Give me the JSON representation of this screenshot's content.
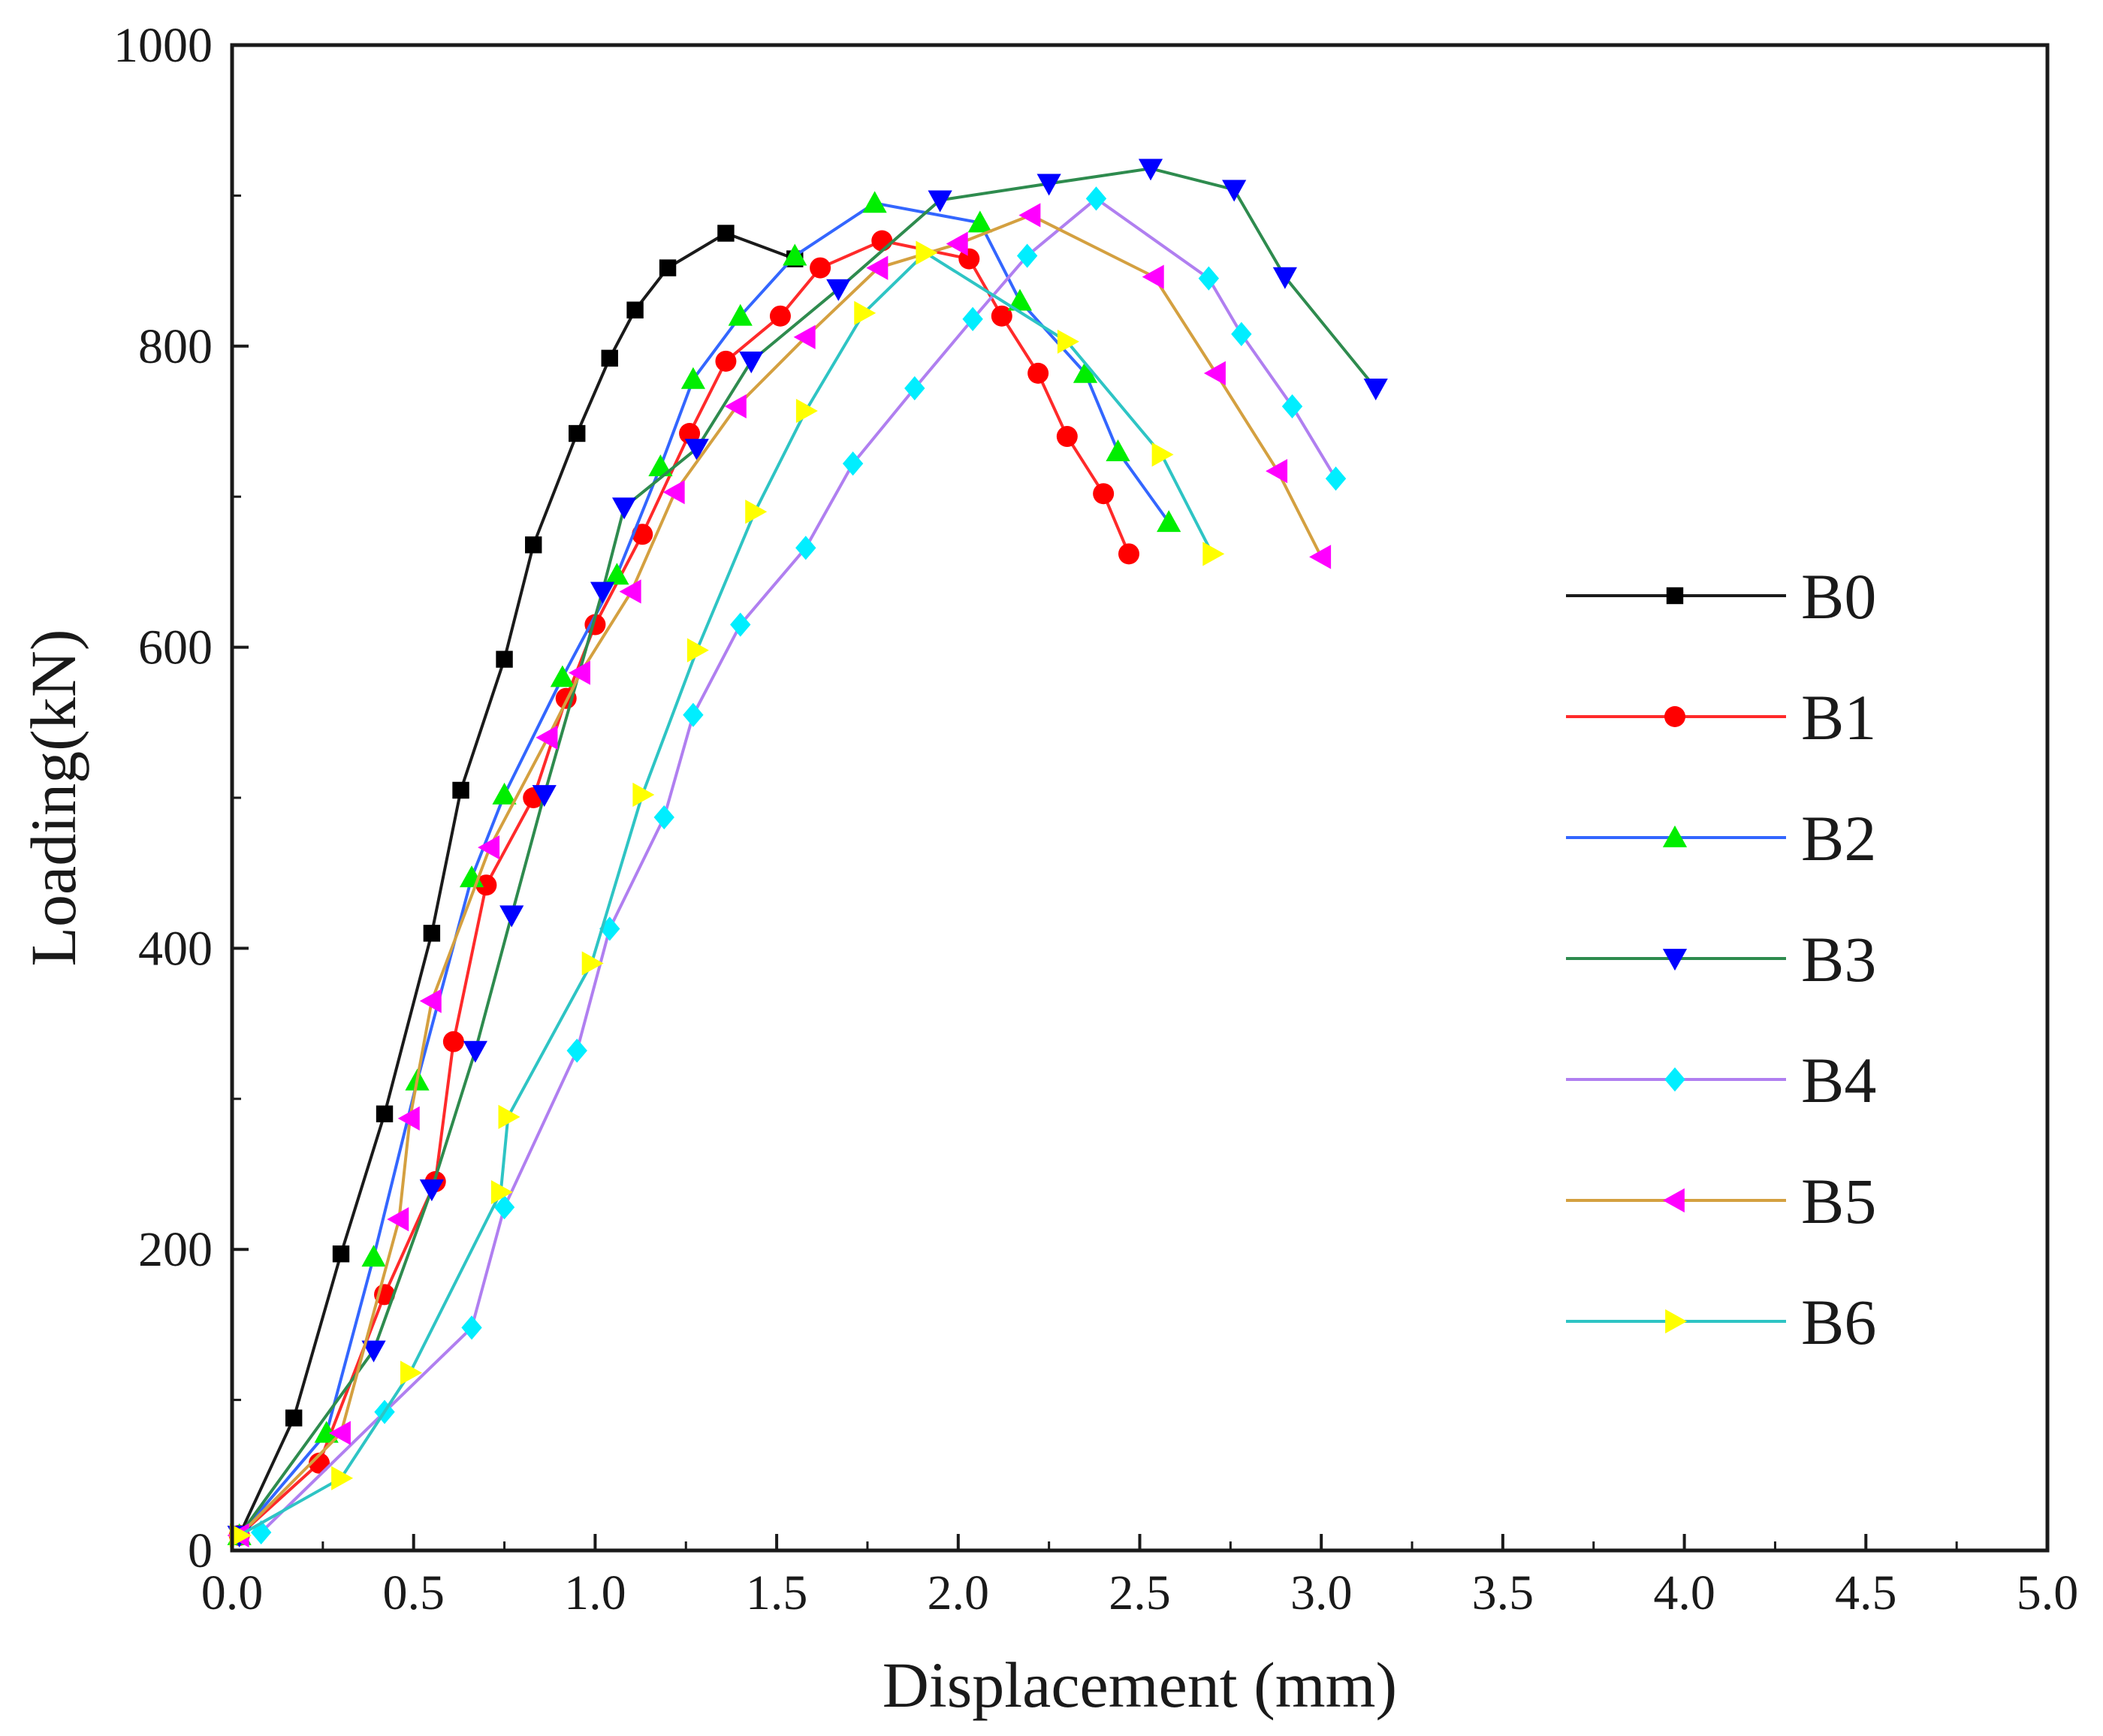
{
  "chart_data": {
    "type": "line",
    "title": "",
    "xlabel": "Displacement (mm)",
    "ylabel": "Loading(kN)",
    "xlim": [
      0,
      5
    ],
    "ylim": [
      0,
      1000
    ],
    "xticks": [
      0,
      0.5,
      1,
      1.5,
      2,
      2.5,
      3,
      3.5,
      4,
      4.5,
      5
    ],
    "yticks": [
      0,
      200,
      400,
      600,
      800,
      1000
    ],
    "xtick_labels": [
      "0.0",
      "0.5",
      "1.0",
      "1.5",
      "2.0",
      "2.5",
      "3.0",
      "3.5",
      "4.0",
      "4.5",
      "5.0"
    ],
    "ytick_labels": [
      "0",
      "200",
      "400",
      "600",
      "800",
      "1000"
    ],
    "grid": false,
    "legend_position": "right",
    "series": [
      {
        "name": "B0",
        "line_color": "#1a1a1a",
        "marker_color": "#000000",
        "marker": "square",
        "x": [
          0.02,
          0.17,
          0.3,
          0.42,
          0.55,
          0.63,
          0.75,
          0.83,
          0.95,
          1.04,
          1.11,
          1.2,
          1.36,
          1.55
        ],
        "y": [
          10,
          88,
          197,
          290,
          410,
          505,
          592,
          668,
          742,
          792,
          824,
          852,
          875,
          858
        ]
      },
      {
        "name": "B1",
        "line_color": "#ff2a2a",
        "marker_color": "#ff0000",
        "marker": "circle",
        "x": [
          0.02,
          0.24,
          0.42,
          0.56,
          0.61,
          0.7,
          0.83,
          0.92,
          1.0,
          1.13,
          1.26,
          1.36,
          1.51,
          1.62,
          1.79,
          2.03,
          2.12,
          2.22,
          2.3,
          2.4,
          2.47
        ],
        "y": [
          10,
          58,
          170,
          245,
          338,
          442,
          500,
          566,
          615,
          675,
          742,
          790,
          820,
          852,
          870,
          858,
          820,
          782,
          740,
          702,
          662
        ]
      },
      {
        "name": "B2",
        "line_color": "#3366ff",
        "marker_color": "#00ee00",
        "marker": "triangle-up",
        "x": [
          0.02,
          0.26,
          0.39,
          0.51,
          0.66,
          0.75,
          0.91,
          1.06,
          1.18,
          1.27,
          1.4,
          1.55,
          1.77,
          2.06,
          2.17,
          2.35,
          2.44,
          2.58
        ],
        "y": [
          10,
          78,
          195,
          312,
          447,
          502,
          580,
          648,
          720,
          778,
          820,
          860,
          895,
          882,
          830,
          782,
          730,
          683
        ]
      },
      {
        "name": "B3",
        "line_color": "#2e8b4e",
        "marker_color": "#0000ff",
        "marker": "triangle-down",
        "x": [
          0.02,
          0.39,
          0.55,
          0.67,
          0.77,
          0.86,
          1.02,
          1.08,
          1.28,
          1.43,
          1.67,
          1.95,
          2.25,
          2.53,
          2.76,
          2.9,
          3.15
        ],
        "y": [
          10,
          133,
          240,
          332,
          422,
          502,
          637,
          693,
          732,
          790,
          838,
          897,
          908,
          918,
          904,
          846,
          772
        ]
      },
      {
        "name": "B4",
        "line_color": "#b07ff0",
        "marker_color": "#00eeff",
        "marker": "diamond",
        "x": [
          0.08,
          0.42,
          0.66,
          0.75,
          0.95,
          1.04,
          1.19,
          1.27,
          1.4,
          1.58,
          1.71,
          1.88,
          2.04,
          2.19,
          2.38,
          2.69,
          2.78,
          2.92,
          3.04
        ],
        "y": [
          12,
          92,
          148,
          228,
          332,
          413,
          487,
          555,
          615,
          666,
          722,
          772,
          818,
          860,
          898,
          845,
          808,
          760,
          712
        ]
      },
      {
        "name": "B5",
        "line_color": "#d4a040",
        "marker_color": "#ff00ff",
        "marker": "triangle-left",
        "x": [
          0.02,
          0.3,
          0.46,
          0.49,
          0.55,
          0.71,
          0.87,
          0.96,
          1.1,
          1.22,
          1.39,
          1.58,
          1.78,
          2.0,
          2.2,
          2.54,
          2.71,
          2.88,
          3.0
        ],
        "y": [
          10,
          78,
          220,
          287,
          365,
          467,
          540,
          583,
          637,
          703,
          760,
          806,
          852,
          868,
          887,
          846,
          782,
          717,
          660
        ]
      },
      {
        "name": "B6",
        "line_color": "#2ec4c4",
        "marker_color": "#ffff00",
        "marker": "triangle-right",
        "x": [
          0.02,
          0.3,
          0.49,
          0.74,
          0.76,
          0.99,
          1.13,
          1.28,
          1.44,
          1.58,
          1.74,
          1.91,
          2.3,
          2.56,
          2.7
        ],
        "y": [
          10,
          48,
          118,
          238,
          288,
          390,
          502,
          598,
          690,
          757,
          822,
          862,
          803,
          728,
          662
        ]
      }
    ]
  }
}
